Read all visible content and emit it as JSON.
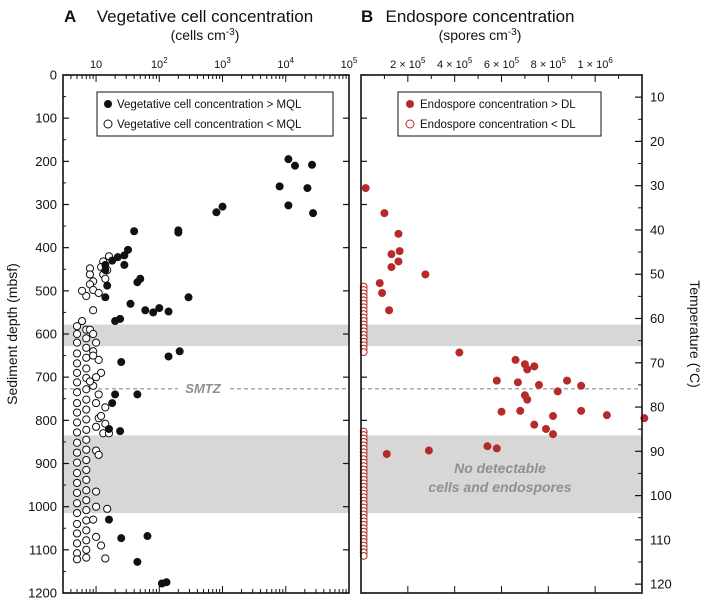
{
  "chart_data": [
    {
      "type": "scatter",
      "panel_label": "A",
      "title": "Vegetative cell concentration",
      "subtitle": "cells cm",
      "subtitle_exp": "-3",
      "ylabel": "Sediment depth (mbsf)",
      "xscale": "log",
      "xlim": [
        3,
        100000
      ],
      "ylim": [
        0,
        1200
      ],
      "x_ticks": [
        {
          "value": 10,
          "label": "10"
        },
        {
          "value": 100,
          "label": "10",
          "exp": "2"
        },
        {
          "value": 1000,
          "label": "10",
          "exp": "3"
        },
        {
          "value": 10000,
          "label": "10",
          "exp": "4"
        },
        {
          "value": 100000,
          "label": "10",
          "exp": "5"
        }
      ],
      "y_ticks": [
        "0",
        "100",
        "200",
        "300",
        "400",
        "500",
        "600",
        "700",
        "800",
        "900",
        "1000",
        "1100",
        "1200"
      ],
      "legend": [
        "Vegetative cell concentration > MQL",
        "Vegetative cell concentration < MQL"
      ],
      "series": [
        {
          "name": "Vegetative cell concentration > MQL",
          "style": "filled",
          "points": [
            [
              11000,
              195
            ],
            [
              14000,
              210
            ],
            [
              26000,
              208
            ],
            [
              8000,
              258
            ],
            [
              22000,
              262
            ],
            [
              11000,
              302
            ],
            [
              27000,
              320
            ],
            [
              1000,
              305
            ],
            [
              800,
              318
            ],
            [
              200,
              360
            ],
            [
              200,
              365
            ],
            [
              40,
              362
            ],
            [
              32,
              405
            ],
            [
              28,
              418
            ],
            [
              22,
              422
            ],
            [
              18,
              430
            ],
            [
              14,
              440
            ],
            [
              28,
              440
            ],
            [
              14,
              452
            ],
            [
              50,
              472
            ],
            [
              45,
              480
            ],
            [
              15,
              488
            ],
            [
              14,
              515
            ],
            [
              290,
              515
            ],
            [
              35,
              530
            ],
            [
              60,
              545
            ],
            [
              80,
              550
            ],
            [
              100,
              540
            ],
            [
              140,
              548
            ],
            [
              24,
              565
            ],
            [
              20,
              570
            ],
            [
              210,
              640
            ],
            [
              140,
              652
            ],
            [
              25,
              665
            ],
            [
              20,
              740
            ],
            [
              45,
              740
            ],
            [
              18,
              760
            ],
            [
              16,
              820
            ],
            [
              24,
              825
            ],
            [
              16,
              1030
            ],
            [
              65,
              1068
            ],
            [
              25,
              1073
            ],
            [
              45,
              1128
            ],
            [
              110,
              1178
            ],
            [
              130,
              1175
            ]
          ]
        },
        {
          "name": "Vegetative cell concentration < MQL",
          "style": "open",
          "points": [
            [
              8,
              448
            ],
            [
              8,
              462
            ],
            [
              9,
              478
            ],
            [
              8,
              485
            ],
            [
              9,
              498
            ],
            [
              7,
              512
            ],
            [
              11,
              505
            ],
            [
              13,
              432
            ],
            [
              12,
              445
            ],
            [
              15,
              452
            ],
            [
              13,
              462
            ],
            [
              14,
              472
            ],
            [
              16,
              420
            ],
            [
              6,
              500
            ],
            [
              5,
              582
            ],
            [
              5,
              600
            ],
            [
              5,
              620
            ],
            [
              5,
              645
            ],
            [
              5,
              668
            ],
            [
              5,
              690
            ],
            [
              5,
              712
            ],
            [
              5,
              735
            ],
            [
              5,
              760
            ],
            [
              5,
              782
            ],
            [
              5,
              805
            ],
            [
              5,
              828
            ],
            [
              5,
              852
            ],
            [
              5,
              875
            ],
            [
              5,
              898
            ],
            [
              5,
              922
            ],
            [
              5,
              945
            ],
            [
              5,
              968
            ],
            [
              5,
              992
            ],
            [
              5,
              1015
            ],
            [
              5,
              1040
            ],
            [
              5,
              1062
            ],
            [
              5,
              1085
            ],
            [
              5,
              1108
            ],
            [
              5,
              1122
            ],
            [
              6,
              570
            ],
            [
              7,
              590
            ],
            [
              7,
              610
            ],
            [
              7,
              632
            ],
            [
              7,
              655
            ],
            [
              7,
              680
            ],
            [
              7,
              702
            ],
            [
              7,
              728
            ],
            [
              7,
              752
            ],
            [
              7,
              775
            ],
            [
              7,
              798
            ],
            [
              7,
              822
            ],
            [
              7,
              845
            ],
            [
              7,
              868
            ],
            [
              7,
              892
            ],
            [
              7,
              915
            ],
            [
              7,
              938
            ],
            [
              7,
              962
            ],
            [
              7,
              985
            ],
            [
              7,
              1008
            ],
            [
              7,
              1032
            ],
            [
              7,
              1055
            ],
            [
              7,
              1078
            ],
            [
              7,
              1100
            ],
            [
              7,
              1118
            ],
            [
              10,
              620
            ],
            [
              9,
              640
            ],
            [
              11,
              660
            ],
            [
              12,
              690
            ],
            [
              10,
              700
            ],
            [
              9,
              720
            ],
            [
              11,
              740
            ],
            [
              10,
              760
            ],
            [
              14,
              770
            ],
            [
              11,
              795
            ],
            [
              10,
              815
            ],
            [
              13,
              830
            ],
            [
              10,
              870
            ],
            [
              11,
              880
            ],
            [
              10,
              965
            ],
            [
              10,
              1000
            ],
            [
              9,
              1030
            ],
            [
              10,
              1070
            ],
            [
              12,
              1090
            ],
            [
              14,
              1120
            ],
            [
              15,
              1005
            ],
            [
              9,
              545
            ],
            [
              8,
              590
            ],
            [
              9,
              600
            ],
            [
              9,
              650
            ],
            [
              8,
              710
            ],
            [
              12,
              790
            ],
            [
              14,
              808
            ],
            [
              16,
              830
            ]
          ]
        }
      ]
    },
    {
      "type": "scatter",
      "panel_label": "B",
      "title": "Endospore concentration",
      "subtitle": "spores cm",
      "subtitle_exp": "-3",
      "ylabel_right": "Temperature (°C)",
      "xscale": "linear",
      "xlim": [
        0,
        1200000
      ],
      "ylim": [
        0,
        1200
      ],
      "x_ticks": [
        {
          "value": 200000,
          "label": "2 × 10",
          "exp": "5"
        },
        {
          "value": 400000,
          "label": "4 × 10",
          "exp": "5"
        },
        {
          "value": 600000,
          "label": "6 × 10",
          "exp": "5"
        },
        {
          "value": 800000,
          "label": "8 × 10",
          "exp": "5"
        },
        {
          "value": 1000000,
          "label": "1 × 10",
          "exp": "6"
        }
      ],
      "temperature_ticks": [
        "10",
        "20",
        "30",
        "40",
        "50",
        "60",
        "70",
        "80",
        "90",
        "100",
        "110",
        "120"
      ],
      "temperature_range": [
        5,
        122
      ],
      "legend": [
        "Endospore concentration > DL",
        "Endospore concentration < DL"
      ],
      "series": [
        {
          "name": "Endospore concentration > DL",
          "style": "filled",
          "points": [
            [
              20000,
              262
            ],
            [
              100000,
              320
            ],
            [
              160000,
              368
            ],
            [
              130000,
              415
            ],
            [
              165000,
              408
            ],
            [
              160000,
              432
            ],
            [
              275000,
              462
            ],
            [
              80000,
              482
            ],
            [
              130000,
              445
            ],
            [
              90000,
              505
            ],
            [
              120000,
              545
            ],
            [
              420000,
              643
            ],
            [
              660000,
              660
            ],
            [
              700000,
              670
            ],
            [
              710000,
              682
            ],
            [
              740000,
              675
            ],
            [
              580000,
              708
            ],
            [
              670000,
              712
            ],
            [
              760000,
              718
            ],
            [
              880000,
              708
            ],
            [
              940000,
              720
            ],
            [
              840000,
              733
            ],
            [
              700000,
              742
            ],
            [
              710000,
              752
            ],
            [
              600000,
              780
            ],
            [
              680000,
              778
            ],
            [
              820000,
              790
            ],
            [
              940000,
              778
            ],
            [
              1050000,
              788
            ],
            [
              1210000,
              795
            ],
            [
              740000,
              810
            ],
            [
              820000,
              832
            ],
            [
              790000,
              820
            ],
            [
              540000,
              860
            ],
            [
              580000,
              865
            ],
            [
              290000,
              870
            ],
            [
              110000,
              878
            ]
          ]
        },
        {
          "name": "Endospore concentration < DL",
          "style": "open",
          "depth_range": [
            490,
            1120
          ],
          "gaps": [
            [
              642,
              825
            ]
          ],
          "approx_value": 5000
        }
      ]
    }
  ],
  "annotations": {
    "smtz": "SMTZ",
    "smtz_depth": 727,
    "bands": [
      [
        578,
        628
      ],
      [
        835,
        1015
      ]
    ],
    "no_detect_line1": "No detectable",
    "no_detect_line2": "cells and endospores"
  }
}
